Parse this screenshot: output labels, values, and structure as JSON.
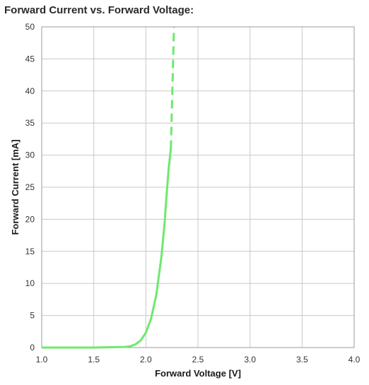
{
  "chart_data": {
    "type": "line",
    "title": "Forward Current vs. Forward Voltage:",
    "xlabel": "Forward Voltage [V]",
    "ylabel": "Forward Current [mA]",
    "xlim": [
      1.0,
      4.0
    ],
    "ylim": [
      0,
      50
    ],
    "x_ticks": [
      "1.0",
      "1.5",
      "2.0",
      "2.5",
      "3.0",
      "3.5",
      "4.0"
    ],
    "y_ticks": [
      "0",
      "5",
      "10",
      "15",
      "20",
      "25",
      "30",
      "35",
      "40",
      "45",
      "50"
    ],
    "grid": true,
    "legend": "none",
    "series": [
      {
        "style": "solid",
        "color": "#6ee86e",
        "x": [
          1.0,
          1.5,
          1.8,
          1.85,
          1.9,
          1.95,
          2.0,
          2.05,
          2.1,
          2.15,
          2.18,
          2.2,
          2.22,
          2.24
        ],
        "y": [
          0,
          0,
          0.1,
          0.2,
          0.5,
          1.1,
          2.3,
          4.5,
          8.2,
          14.2,
          19.5,
          24.0,
          28.0,
          31.0
        ]
      },
      {
        "style": "dashed",
        "color": "#6ee86e",
        "x": [
          2.24,
          2.255,
          2.27
        ],
        "y": [
          31.0,
          40.5,
          50.0
        ]
      }
    ]
  }
}
